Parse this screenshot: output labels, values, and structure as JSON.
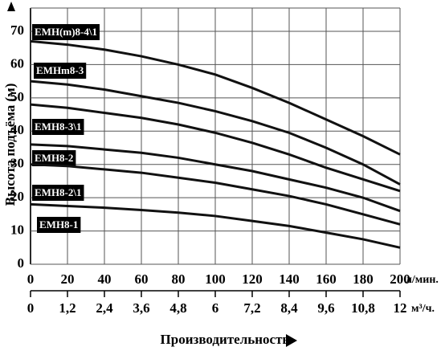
{
  "chart_data": {
    "type": "line",
    "ylabel": "Высота подъёма (м)",
    "xlabel": "Производительность",
    "xunit": "л/мин.",
    "x2unit": "м³/ч.",
    "x": [
      0,
      20,
      40,
      60,
      80,
      100,
      120,
      140,
      160,
      180,
      200
    ],
    "xlim": [
      0,
      200
    ],
    "xticks": [
      0,
      20,
      40,
      60,
      80,
      100,
      120,
      140,
      160,
      180,
      200
    ],
    "x2lim": [
      0,
      12
    ],
    "x2ticks": [
      0,
      {
        "value": 1.2,
        "label": "1,2"
      },
      {
        "value": 2.4,
        "label": "2,4"
      },
      {
        "value": 3.6,
        "label": "3,6"
      },
      {
        "value": 4.8,
        "label": "4,8"
      },
      6,
      {
        "value": 7.2,
        "label": "7,2"
      },
      {
        "value": 8.4,
        "label": "8,4"
      },
      {
        "value": 9.6,
        "label": "9,6"
      },
      {
        "value": 10.8,
        "label": "10,8"
      },
      12
    ],
    "ylim": [
      0,
      77
    ],
    "yticks": [
      0,
      10,
      20,
      30,
      40,
      50,
      60,
      70
    ],
    "grid": true,
    "series": [
      {
        "name": "EMH(m)8-4\\1",
        "color": "#111111",
        "values": [
          67,
          66,
          64.5,
          62.5,
          60,
          57,
          53,
          48.5,
          43.5,
          38.5,
          33
        ]
      },
      {
        "name": "EMHm8-3",
        "color": "#111111",
        "values": [
          55,
          54,
          52.5,
          50.5,
          48.5,
          46,
          43,
          39.5,
          35,
          30,
          24
        ]
      },
      {
        "name": "EMH8-3\\1",
        "color": "#111111",
        "values": [
          48,
          47,
          45.5,
          44,
          42,
          39.5,
          36.5,
          33,
          29,
          25.5,
          22
        ]
      },
      {
        "name": "EMH8-2",
        "color": "#111111",
        "values": [
          36,
          35.5,
          34.5,
          33.5,
          32,
          30,
          28,
          25.5,
          23,
          20,
          16
        ]
      },
      {
        "name": "EMH8-2\\1",
        "color": "#111111",
        "values": [
          30,
          29.5,
          28.5,
          27.5,
          26,
          24.5,
          22.5,
          20.5,
          18,
          15,
          12
        ]
      },
      {
        "name": "EMH8-1",
        "color": "#111111",
        "values": [
          18,
          17.5,
          17,
          16.3,
          15.5,
          14.5,
          13,
          11.5,
          9.5,
          7.5,
          5
        ]
      }
    ]
  }
}
